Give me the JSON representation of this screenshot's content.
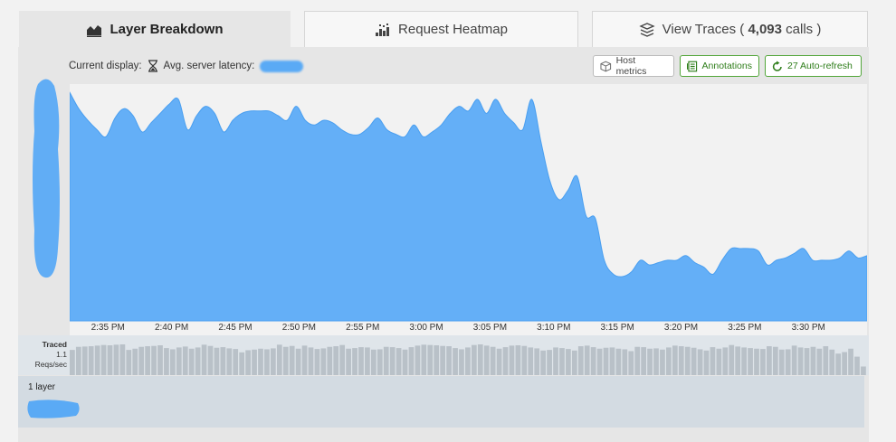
{
  "tabs": [
    {
      "label": "Layer Breakdown",
      "icon": "area-chart-icon",
      "active": true
    },
    {
      "label": "Request Heatmap",
      "icon": "heatmap-icon",
      "active": false
    },
    {
      "label_prefix": "View Traces ( ",
      "count": "4,093",
      "label_suffix": " calls )",
      "icon": "traces-stack-icon",
      "active": false
    }
  ],
  "toolbar": {
    "current_display_label": "Current display:",
    "metric_label": "Avg. server latency:",
    "metric_icon": "hourglass-icon",
    "host_metrics_label": "Host metrics",
    "annotations_label": "Annotations",
    "auto_refresh_label": "27 Auto-refresh"
  },
  "colors": {
    "series": "#64aff7",
    "series_stroke": "#4a9ff0",
    "traced_bar": "#b9c1c8",
    "green_border": "#52a63a"
  },
  "chart_data": {
    "type": "area",
    "x_tick_labels": [
      "2:35 PM",
      "2:40 PM",
      "2:45 PM",
      "2:50 PM",
      "2:55 PM",
      "3:00 PM",
      "3:05 PM",
      "3:10 PM",
      "3:15 PM",
      "3:20 PM",
      "3:25 PM",
      "3:30 PM"
    ],
    "x_start_minutes": 32,
    "x_end_minutes": 94.6,
    "tick_minutes": [
      35,
      40,
      45,
      50,
      55,
      60,
      65,
      70,
      75,
      80,
      85,
      90
    ],
    "ylim": [
      0,
      1
    ],
    "series": [
      {
        "values": [
          0.98,
          0.91,
          0.86,
          0.82,
          0.79,
          0.87,
          0.91,
          0.88,
          0.81,
          0.85,
          0.89,
          0.93,
          0.95,
          0.82,
          0.88,
          0.92,
          0.89,
          0.81,
          0.86,
          0.89,
          0.9,
          0.9,
          0.9,
          0.88,
          0.86,
          0.92,
          0.86,
          0.84,
          0.86,
          0.85,
          0.82,
          0.8,
          0.8,
          0.83,
          0.87,
          0.82,
          0.8,
          0.79,
          0.84,
          0.79,
          0.81,
          0.84,
          0.89,
          0.92,
          0.9,
          0.95,
          0.89,
          0.95,
          0.89,
          0.85,
          0.82,
          0.95,
          0.77,
          0.6,
          0.52,
          0.56,
          0.62,
          0.45,
          0.44,
          0.26,
          0.2,
          0.19,
          0.21,
          0.26,
          0.24,
          0.25,
          0.26,
          0.26,
          0.28,
          0.25,
          0.23,
          0.2,
          0.26,
          0.31,
          0.31,
          0.31,
          0.3,
          0.24,
          0.26,
          0.27,
          0.29,
          0.31,
          0.26,
          0.26,
          0.26,
          0.27,
          0.3,
          0.27,
          0.28
        ]
      }
    ]
  },
  "traced": {
    "label_title": "Traced",
    "label_value": "1.1",
    "label_unit": "Reqs/sec",
    "values": [
      0.82,
      0.92,
      0.93,
      0.94,
      0.96,
      0.98,
      0.97,
      0.99,
      1.0,
      0.82,
      0.86,
      0.92,
      0.94,
      0.95,
      0.97,
      0.88,
      0.84,
      0.9,
      0.93,
      0.86,
      0.9,
      0.99,
      0.95,
      0.89,
      0.91,
      0.87,
      0.85,
      0.74,
      0.81,
      0.83,
      0.86,
      0.84,
      0.87,
      0.99,
      0.92,
      0.95,
      0.86,
      0.96,
      0.9,
      0.85,
      0.87,
      0.92,
      0.94,
      0.98,
      0.86,
      0.88,
      0.91,
      0.9,
      0.83,
      0.84,
      0.92,
      0.91,
      0.88,
      0.83,
      0.91,
      0.96,
      0.99,
      0.98,
      0.97,
      0.95,
      0.94,
      0.88,
      0.84,
      0.9,
      0.98,
      1.0,
      0.96,
      0.92,
      0.86,
      0.91,
      0.96,
      0.97,
      0.95,
      0.9,
      0.87,
      0.8,
      0.82,
      0.9,
      0.88,
      0.85,
      0.8,
      0.94,
      0.96,
      0.91,
      0.86,
      0.89,
      0.9,
      0.86,
      0.84,
      0.78,
      0.92,
      0.91,
      0.86,
      0.87,
      0.83,
      0.9,
      0.96,
      0.94,
      0.92,
      0.89,
      0.84,
      0.8,
      0.91,
      0.86,
      0.9,
      0.98,
      0.93,
      0.9,
      0.88,
      0.86,
      0.85,
      0.94,
      0.92,
      0.83,
      0.84,
      0.96,
      0.9,
      0.88,
      0.92,
      0.86,
      0.94,
      0.83,
      0.7,
      0.75,
      0.86,
      0.6,
      0.28
    ]
  },
  "layers": {
    "count_label": "1 layer"
  }
}
